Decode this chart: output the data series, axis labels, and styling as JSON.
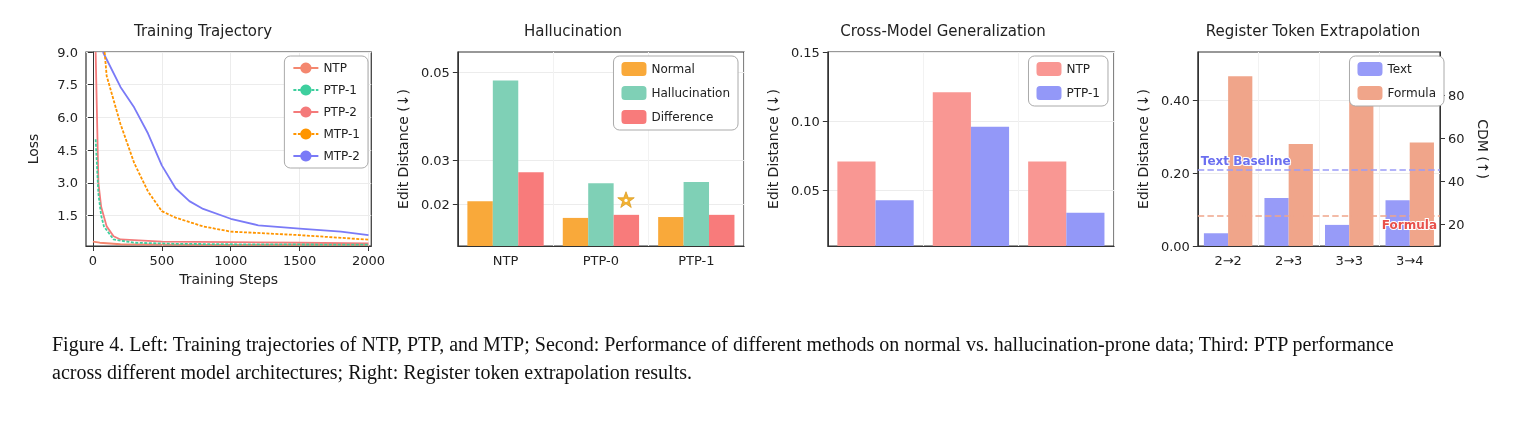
{
  "chart_data": [
    {
      "type": "line",
      "title": "Training Trajectory",
      "xlabel": "Training Steps",
      "ylabel": "Loss",
      "xlim": [
        -50,
        2020
      ],
      "ylim": [
        0.1,
        9
      ],
      "xticks": [
        0,
        500,
        1000,
        1500,
        2000
      ],
      "yticks": [
        1.5,
        {
          "value": 3,
          "label": "3.0"
        },
        4.5,
        {
          "value": 6,
          "label": "6.0"
        },
        7.5,
        {
          "value": 9,
          "label": "9.0"
        }
      ],
      "grid": true,
      "legend": "top right",
      "marker": "none",
      "annotations": [
        "Figure 4. Left: Training trajectories of NTP, PTP, and MTP; Second: Performance of different methods on normal vs. hallucination-prone data; Third: PTP performance across different model architectures; Right: Register token extrapolation results."
      ],
      "series": [
        {
          "name": "NTP",
          "color": "#f4876f",
          "line_style": "solid",
          "x": [
            0,
            50,
            200,
            500,
            1000,
            1500,
            2000
          ],
          "values": [
            0.3,
            0.25,
            0.18,
            0.16,
            0.15,
            0.15,
            0.15
          ]
        },
        {
          "name": "PTP-1",
          "color": "#3ecf9e",
          "line_style": "dashed",
          "x": [
            20,
            40,
            60,
            80,
            150,
            300,
            600,
            1000,
            1500,
            2000
          ],
          "values": [
            5.0,
            2.5,
            1.5,
            1.0,
            0.4,
            0.25,
            0.2,
            0.18,
            0.17,
            0.16
          ]
        },
        {
          "name": "PTP-2",
          "color": "#f47a7a",
          "line_style": "solid",
          "x": [
            20,
            40,
            60,
            100,
            150,
            200,
            500,
            1000,
            1500,
            2000
          ],
          "values": [
            9.0,
            3.0,
            1.9,
            1.0,
            0.55,
            0.4,
            0.3,
            0.28,
            0.25,
            0.22
          ]
        },
        {
          "name": "MTP-1",
          "color": "#ff9500",
          "line_style": "dashed",
          "x": [
            85,
            100,
            200,
            300,
            400,
            500,
            600,
            800,
            1000,
            1500,
            2000
          ],
          "values": [
            9.0,
            7.9,
            5.7,
            3.9,
            2.6,
            1.7,
            1.4,
            1.0,
            0.76,
            0.6,
            0.39
          ]
        },
        {
          "name": "MTP-2",
          "color": "#7a7af7",
          "line_style": "solid",
          "x": [
            73,
            200,
            300,
            400,
            500,
            600,
            700,
            800,
            1000,
            1200,
            1500,
            1800,
            2000
          ],
          "values": [
            9.0,
            7.4,
            6.45,
            5.26,
            3.8,
            2.75,
            2.16,
            1.8,
            1.35,
            1.05,
            0.9,
            0.76,
            0.6
          ]
        }
      ]
    },
    {
      "type": "bar",
      "title": "Hallucination",
      "ylabel": "Edit Distance (↓)",
      "categories": [
        "NTP",
        "PTP-0",
        "PTP-1"
      ],
      "ylim": [
        0.0105,
        0.0547
      ],
      "yticks": [
        0.02,
        0.03,
        0.05
      ],
      "grid": true,
      "legend": "top right",
      "series": [
        {
          "name": "Normal",
          "color": "#f9a93a",
          "values": [
            0.0207,
            0.0169,
            0.0171
          ]
        },
        {
          "name": "Hallucination",
          "color": "#7fd0b6",
          "values": [
            0.0482,
            0.0248,
            0.0251
          ]
        },
        {
          "name": "Difference",
          "color": "#f87b7b",
          "values": [
            0.0273,
            0.0176,
            0.0176
          ]
        }
      ]
    },
    {
      "type": "bar",
      "title": "Cross-Model Generalization",
      "ylabel": "Edit Distance (↓)",
      "categories": [
        null,
        null,
        null
      ],
      "ylim": [
        0.01,
        0.15
      ],
      "yticks": [
        0.05,
        {
          "value": 0.1,
          "label": "0.10"
        },
        0.15
      ],
      "grid": true,
      "legend": "top right",
      "series": [
        {
          "name": "NTP",
          "color": "#f99793",
          "values": [
            0.071,
            0.121,
            0.071
          ]
        },
        {
          "name": "PTP-1",
          "color": "#9398f8",
          "values": [
            0.043,
            0.096,
            0.034
          ]
        }
      ]
    },
    {
      "type": "bar",
      "title": "Register Token Extrapolation",
      "ylabel": "Edit Distance (↓)",
      "y2label": "CDM (↑)",
      "categories": [
        "2→2",
        "2→3",
        "3→3",
        "3→4"
      ],
      "ylim": [
        0,
        0.533
      ],
      "yticks": [
        {
          "value": 0,
          "label": "0.00"
        },
        {
          "value": 0.2,
          "label": "0.20"
        },
        {
          "value": 0.4,
          "label": "0.40"
        }
      ],
      "y2lim": [
        10,
        100
      ],
      "y2ticks": [
        20,
        40,
        60,
        80
      ],
      "grid": true,
      "legend": "top right",
      "ref_lines": [
        {
          "axis": "y",
          "value": 0.208,
          "label": "Text Baseline",
          "color": "#9a9cf8",
          "line_style": "dashed"
        },
        {
          "axis": "y2",
          "value": 24,
          "label": "Formula",
          "color": "#f0a58a",
          "line_style": "dashed"
        }
      ],
      "series": [
        {
          "name": "Text",
          "color": "#979bf8",
          "values": [
            0.035,
            0.132,
            0.058,
            0.126
          ]
        },
        {
          "name": "Formula",
          "color": "#f0a58a",
          "axis": "y2",
          "values": [
            88.7,
            57.3,
            77.4,
            58.0
          ]
        }
      ]
    }
  ]
}
